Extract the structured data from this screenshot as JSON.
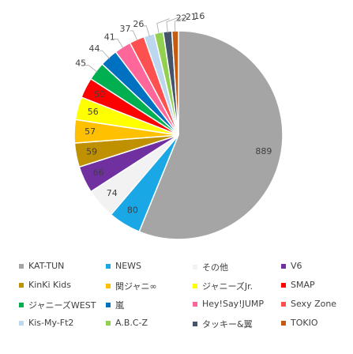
{
  "chart_data": {
    "type": "pie",
    "title": "",
    "labels": [
      "KAT-TUN",
      "NEWS",
      "その他",
      "V6",
      "KinKi Kids",
      "関ジャニ∞",
      "ジャニーズJr.",
      "SMAP",
      "ジャニーズWEST",
      "嵐",
      "Hey!Say!JUMP",
      "Sexy Zone",
      "Kis-My-Ft2",
      "A.B.C-Z",
      "タッキー&翼",
      "TOKIO"
    ],
    "values": [
      889,
      80,
      74,
      66,
      59,
      57,
      56,
      50,
      45,
      44,
      41,
      37,
      26,
      22,
      21,
      16
    ],
    "colors": [
      "#a5a5a5",
      "#1aa7e6",
      "#f2f2f2",
      "#7030a0",
      "#bf9000",
      "#ffc000",
      "#ffff00",
      "#ff0000",
      "#00b050",
      "#0070c0",
      "#ff6699",
      "#ff5050",
      "#bdd7ee",
      "#92d050",
      "#44546a",
      "#c55a11"
    ],
    "legend_position": "bottom"
  }
}
